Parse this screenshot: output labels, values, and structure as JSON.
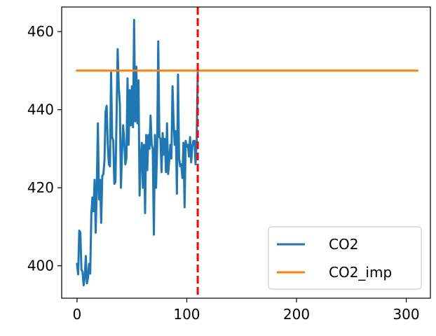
{
  "chart_data": {
    "type": "line",
    "title": "",
    "xlabel": "",
    "ylabel": "",
    "xlim": [
      -14,
      322
    ],
    "ylim": [
      391.7,
      466.3
    ],
    "xticks": [
      0,
      100,
      200,
      300
    ],
    "yticks": [
      400,
      420,
      440,
      460
    ],
    "xtick_labels": [
      "0",
      "100",
      "200",
      "300"
    ],
    "ytick_labels": [
      "400",
      "420",
      "440",
      "460"
    ],
    "grid": false,
    "legend_position": "lower-right",
    "vline": {
      "x": 110,
      "color": "#ff0000",
      "style": "dashed"
    },
    "series": [
      {
        "name": "CO2",
        "color": "#1f77b4",
        "points": [
          [
            0,
            400.5
          ],
          [
            1,
            397.8
          ],
          [
            2,
            409
          ],
          [
            3,
            408.5
          ],
          [
            4,
            399
          ],
          [
            5,
            398.5
          ],
          [
            6,
            395
          ],
          [
            7,
            397
          ],
          [
            8,
            402.5
          ],
          [
            9,
            395.5
          ],
          [
            10,
            397
          ],
          [
            11,
            400.5
          ],
          [
            12,
            398
          ],
          [
            13,
            413
          ],
          [
            14,
            417.5
          ],
          [
            15,
            414
          ],
          [
            16,
            422
          ],
          [
            17,
            408.5
          ],
          [
            18,
            420.5
          ],
          [
            19,
            436.5
          ],
          [
            20,
            417
          ],
          [
            21,
            422
          ],
          [
            22,
            411
          ],
          [
            23,
            423
          ],
          [
            24,
            423.5
          ],
          [
            25,
            427
          ],
          [
            26,
            439.5
          ],
          [
            27,
            441
          ],
          [
            28,
            431
          ],
          [
            29,
            426
          ],
          [
            30,
            425.5
          ],
          [
            31,
            449.5
          ],
          [
            32,
            433
          ],
          [
            33,
            432
          ],
          [
            34,
            421
          ],
          [
            35,
            421.5
          ],
          [
            36,
            438
          ],
          [
            37,
            455.5
          ],
          [
            38,
            446
          ],
          [
            39,
            441.5
          ],
          [
            40,
            420
          ],
          [
            41,
            429
          ],
          [
            42,
            436
          ],
          [
            43,
            432
          ],
          [
            44,
            426
          ],
          [
            45,
            427.5
          ],
          [
            46,
            448
          ],
          [
            47,
            431
          ],
          [
            48,
            445
          ],
          [
            49,
            436
          ],
          [
            50,
            446
          ],
          [
            51,
            435.5
          ],
          [
            52,
            463
          ],
          [
            53,
            437
          ],
          [
            54,
            451
          ],
          [
            55,
            436.5
          ],
          [
            56,
            447.5
          ],
          [
            57,
            418
          ],
          [
            58,
            427.5
          ],
          [
            59,
            431.5
          ],
          [
            60,
            420
          ],
          [
            61,
            431
          ],
          [
            62,
            413.5
          ],
          [
            63,
            433.5
          ],
          [
            64,
            424.5
          ],
          [
            65,
            433.5
          ],
          [
            66,
            430
          ],
          [
            67,
            438.5
          ],
          [
            68,
            431
          ],
          [
            69,
            430
          ],
          [
            70,
            408
          ],
          [
            71,
            433.5
          ],
          [
            72,
            420
          ],
          [
            73,
            430.5
          ],
          [
            74,
            457.5
          ],
          [
            75,
            433
          ],
          [
            76,
            432.5
          ],
          [
            77,
            424
          ],
          [
            78,
            434
          ],
          [
            79,
            428.5
          ],
          [
            80,
            432.5
          ],
          [
            81,
            424
          ],
          [
            82,
            436.5
          ],
          [
            83,
            423.5
          ],
          [
            84,
            427
          ],
          [
            85,
            431
          ],
          [
            86,
            427.5
          ],
          [
            87,
            446
          ],
          [
            88,
            437
          ],
          [
            89,
            431
          ],
          [
            90,
            434.5
          ],
          [
            91,
            418.5
          ],
          [
            92,
            449
          ],
          [
            93,
            427.5
          ],
          [
            94,
            425.5
          ],
          [
            95,
            426
          ],
          [
            96,
            422.5
          ],
          [
            97,
            431.5
          ],
          [
            98,
            415
          ],
          [
            99,
            432
          ],
          [
            100,
            430.5
          ],
          [
            101,
            431
          ],
          [
            102,
            428
          ],
          [
            103,
            433
          ],
          [
            104,
            426.5
          ],
          [
            105,
            430.5
          ],
          [
            106,
            432
          ],
          [
            107,
            432
          ],
          [
            108,
            426
          ],
          [
            109,
            432
          ],
          [
            110,
            450
          ]
        ]
      },
      {
        "name": "CO2_imp",
        "color": "#ff7f0e",
        "points": [
          [
            0,
            450
          ],
          [
            310,
            450
          ]
        ]
      }
    ]
  }
}
